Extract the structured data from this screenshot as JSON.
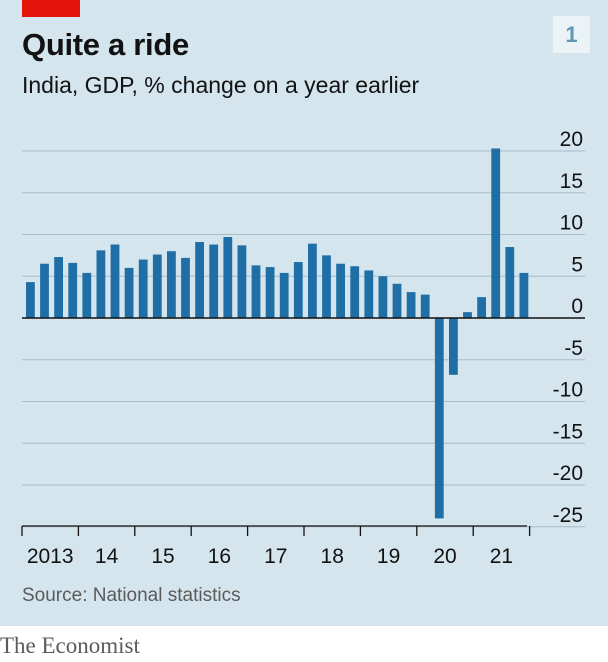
{
  "header": {
    "title": "Quite a ride",
    "subtitle": "India, GDP, % change on a year earlier",
    "chart_number": "1"
  },
  "footer": {
    "source": "Source: National statistics",
    "brand": "The Economist"
  },
  "colors": {
    "background": "#d4e5ee",
    "bar": "#1f6fa6",
    "gridline": "#a9bcc8",
    "zero_line": "#121212",
    "accent": "#e3120b"
  },
  "chart_data": {
    "type": "bar",
    "title": "Quite a ride",
    "subtitle": "India, GDP, % change on a year earlier",
    "frequency": "quarterly",
    "x_tick_labels": [
      "2013",
      "14",
      "15",
      "16",
      "17",
      "18",
      "19",
      "20",
      "21"
    ],
    "y_tick_labels": [
      "20",
      "15",
      "10",
      "5",
      "0",
      "-5",
      "-10",
      "-15",
      "-20",
      "-25"
    ],
    "y_ticks": [
      20,
      15,
      10,
      5,
      0,
      -5,
      -10,
      -15,
      -20,
      -25
    ],
    "ylim": [
      -25,
      20
    ],
    "y_axis_side": "right",
    "grid": true,
    "x": [
      "2013 Q1",
      "2013 Q2",
      "2013 Q3",
      "2013 Q4",
      "2014 Q1",
      "2014 Q2",
      "2014 Q3",
      "2014 Q4",
      "2015 Q1",
      "2015 Q2",
      "2015 Q3",
      "2015 Q4",
      "2016 Q1",
      "2016 Q2",
      "2016 Q3",
      "2016 Q4",
      "2017 Q1",
      "2017 Q2",
      "2017 Q3",
      "2017 Q4",
      "2018 Q1",
      "2018 Q2",
      "2018 Q3",
      "2018 Q4",
      "2019 Q1",
      "2019 Q2",
      "2019 Q3",
      "2019 Q4",
      "2020 Q1",
      "2020 Q2",
      "2020 Q3",
      "2020 Q4",
      "2021 Q1",
      "2021 Q2",
      "2021 Q3",
      "2021 Q4"
    ],
    "values": [
      4.3,
      6.5,
      7.3,
      6.6,
      5.4,
      8.1,
      8.8,
      6.0,
      7.0,
      7.6,
      8.0,
      7.2,
      9.1,
      8.8,
      9.7,
      8.7,
      6.3,
      6.1,
      5.4,
      6.7,
      8.9,
      7.5,
      6.5,
      6.2,
      5.7,
      5.0,
      4.1,
      3.1,
      2.8,
      -24.0,
      -6.8,
      0.7,
      2.5,
      20.3,
      8.5,
      5.4
    ],
    "source": "Source: National statistics"
  }
}
